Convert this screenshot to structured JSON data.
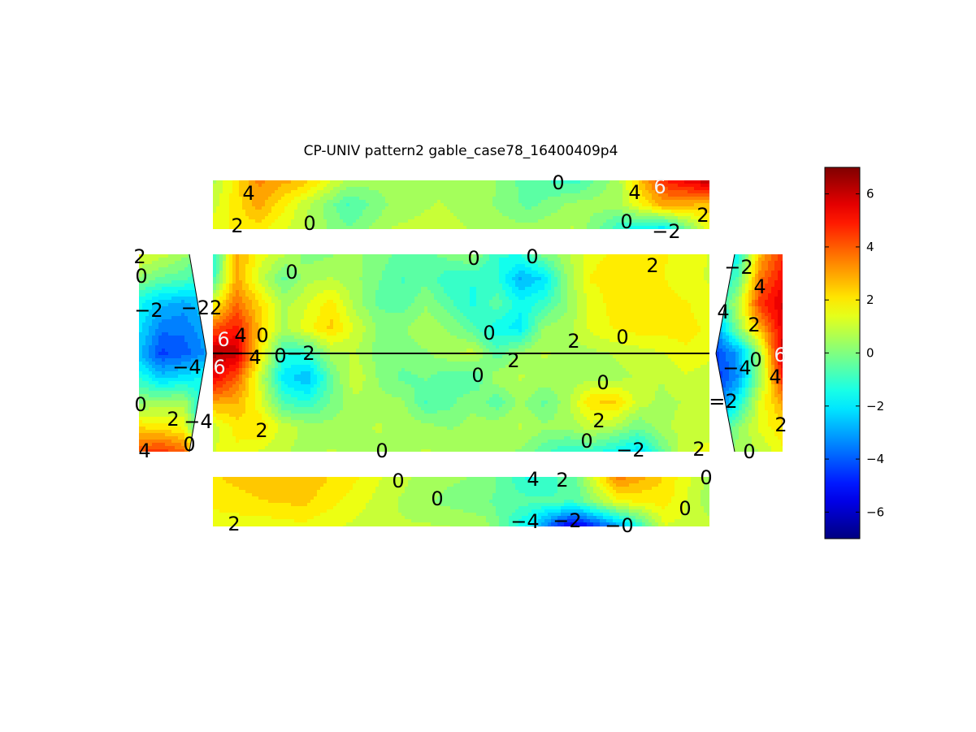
{
  "chart_data": {
    "type": "heatmap",
    "title": "CP-UNIV pattern2 gable_case78_16400409p4",
    "colormap": "jet",
    "value_range": [
      -7,
      7
    ],
    "colorbar": {
      "ticks": [
        -6,
        -4,
        -2,
        0,
        2,
        4,
        6
      ],
      "tick_labels": [
        "−6",
        "−4",
        "−2",
        "0",
        "2",
        "4",
        "6"
      ]
    },
    "grid_on": false,
    "faces": [
      {
        "name": "top-wall",
        "nx": 12,
        "ny": 3,
        "values": [
          [
            0.6,
            3.4,
            2.6,
            0.6,
            0.4,
            0.6,
            0.6,
            -0.6,
            -1.0,
            0.6,
            4.8,
            6.2
          ],
          [
            1.0,
            3.0,
            1.0,
            -0.8,
            0.4,
            0.8,
            0.4,
            -0.4,
            0.4,
            0.6,
            3.0,
            2.6
          ],
          [
            1.6,
            2.0,
            0.8,
            -0.2,
            0.8,
            1.0,
            0.6,
            0.4,
            0.8,
            -1.2,
            -2.2,
            1.6
          ]
        ]
      },
      {
        "name": "roof",
        "nx": 22,
        "ny": 9,
        "values": [
          [
            -1.5,
            3.0,
            1.5,
            0.8,
            0.0,
            0.2,
            0.4,
            0.0,
            -0.4,
            -0.4,
            0.0,
            0.4,
            -1.2,
            -1.2,
            0.0,
            0.6,
            1.6,
            1.8,
            1.8,
            1.8,
            1.6,
            1.2
          ],
          [
            -1.0,
            3.0,
            1.0,
            -0.4,
            0.6,
            0.8,
            0.4,
            -0.2,
            -0.8,
            -0.4,
            -1.2,
            -1.2,
            -1.2,
            -2.8,
            -2.2,
            0.4,
            1.8,
            2.0,
            2.0,
            1.8,
            1.4,
            1.2
          ],
          [
            1.5,
            3.8,
            2.2,
            0.6,
            1.2,
            2.0,
            0.6,
            -0.4,
            -0.6,
            0.2,
            -0.6,
            -1.4,
            -0.4,
            -1.6,
            -1.0,
            0.2,
            1.4,
            2.0,
            2.0,
            2.0,
            1.8,
            1.4
          ],
          [
            4.0,
            5.0,
            2.5,
            0.6,
            1.6,
            2.4,
            1.2,
            0.2,
            0.2,
            0.6,
            0.2,
            -0.6,
            -1.6,
            -2.0,
            0.4,
            0.6,
            1.4,
            1.8,
            2.0,
            2.0,
            2.0,
            1.6
          ],
          [
            6.5,
            6.0,
            2.0,
            -1.2,
            -1.0,
            0.6,
            0.8,
            0.0,
            0.0,
            0.2,
            0.6,
            1.0,
            -0.6,
            0.4,
            0.8,
            0.6,
            0.6,
            0.8,
            1.0,
            1.2,
            1.6,
            1.4
          ],
          [
            5.5,
            4.0,
            1.0,
            -2.0,
            -2.8,
            -0.4,
            1.2,
            0.2,
            -0.4,
            -0.2,
            -0.6,
            -0.8,
            0.6,
            0.8,
            0.6,
            0.4,
            0.6,
            0.6,
            0.8,
            0.8,
            1.2,
            1.0
          ],
          [
            3.0,
            2.8,
            1.4,
            -0.8,
            -1.2,
            -0.2,
            0.6,
            0.4,
            0.4,
            -0.8,
            -0.4,
            0.2,
            -0.6,
            0.4,
            -0.4,
            0.6,
            2.2,
            2.4,
            1.0,
            0.6,
            0.8,
            0.8
          ],
          [
            1.0,
            2.0,
            2.2,
            1.0,
            0.6,
            0.4,
            0.6,
            0.8,
            0.6,
            0.4,
            0.2,
            0.4,
            0.6,
            0.8,
            0.4,
            0.4,
            1.0,
            0.6,
            -0.2,
            0.6,
            1.0,
            1.0
          ],
          [
            1.2,
            1.6,
            1.2,
            0.8,
            0.6,
            0.8,
            0.6,
            0.6,
            0.6,
            0.8,
            0.6,
            0.4,
            0.4,
            0.2,
            -0.6,
            -1.2,
            -1.0,
            -1.6,
            -2.2,
            -0.4,
            1.2,
            1.4
          ]
        ]
      },
      {
        "name": "bottom-wall",
        "nx": 12,
        "ny": 3,
        "values": [
          [
            2.2,
            2.6,
            2.6,
            2.0,
            1.0,
            0.4,
            0.2,
            -1.4,
            -0.4,
            3.6,
            2.2,
            0.6
          ],
          [
            1.8,
            2.2,
            2.4,
            1.6,
            0.8,
            0.2,
            -0.2,
            -0.6,
            -0.8,
            1.6,
            2.0,
            0.4
          ],
          [
            1.6,
            1.4,
            1.6,
            1.2,
            0.8,
            0.8,
            0.6,
            -2.0,
            -6.0,
            -3.0,
            1.2,
            1.0
          ]
        ]
      },
      {
        "name": "left-gable",
        "nx": 4,
        "ny": 9,
        "values": [
          [
            1.4,
            1.0,
            0.4,
            -0.4
          ],
          [
            0.2,
            -0.4,
            -0.6,
            -1.6
          ],
          [
            -1.6,
            -2.6,
            -3.0,
            -2.2
          ],
          [
            -2.0,
            -3.6,
            -3.6,
            -2.8
          ],
          [
            -2.6,
            -4.4,
            -4.0,
            -3.2
          ],
          [
            -1.2,
            -2.4,
            -2.0,
            -1.6
          ],
          [
            0.2,
            0.4,
            0.6,
            -2.2
          ],
          [
            2.2,
            2.0,
            1.6,
            -2.6
          ],
          [
            4.2,
            4.6,
            3.8,
            0.4
          ]
        ]
      },
      {
        "name": "right-gable",
        "nx": 4,
        "ny": 9,
        "values": [
          [
            -2.4,
            -1.6,
            2.8,
            4.6
          ],
          [
            -2.0,
            -0.6,
            3.6,
            5.2
          ],
          [
            -1.8,
            0.8,
            4.6,
            5.8
          ],
          [
            -3.2,
            0.2,
            2.8,
            5.6
          ],
          [
            -4.4,
            -3.0,
            0.6,
            6.0
          ],
          [
            -4.6,
            -3.2,
            0.4,
            4.8
          ],
          [
            -4.0,
            -1.6,
            1.4,
            3.0
          ],
          [
            -2.0,
            0.2,
            1.4,
            2.2
          ],
          [
            0.6,
            0.4,
            0.8,
            1.6
          ]
        ]
      }
    ],
    "contour_labels": [
      {
        "face": "top-wall",
        "text": "4",
        "tone": "dark"
      },
      {
        "face": "top-wall",
        "text": "2",
        "tone": "dark"
      },
      {
        "face": "top-wall",
        "text": "0",
        "tone": "dark"
      },
      {
        "face": "top-wall",
        "text": "0",
        "tone": "dark"
      },
      {
        "face": "top-wall",
        "text": "4",
        "tone": "dark"
      },
      {
        "face": "top-wall",
        "text": "6",
        "tone": "light"
      },
      {
        "face": "top-wall",
        "text": "0",
        "tone": "dark"
      },
      {
        "face": "top-wall",
        "text": "−2",
        "tone": "dark"
      },
      {
        "face": "top-wall",
        "text": "2",
        "tone": "dark"
      },
      {
        "face": "roof",
        "text": "0",
        "tone": "dark"
      },
      {
        "face": "roof",
        "text": "0",
        "tone": "dark"
      },
      {
        "face": "roof",
        "text": "0",
        "tone": "dark"
      },
      {
        "face": "roof",
        "text": "2",
        "tone": "dark"
      },
      {
        "face": "roof",
        "text": "6",
        "tone": "light"
      },
      {
        "face": "roof",
        "text": "4",
        "tone": "dark"
      },
      {
        "face": "roof",
        "text": "0",
        "tone": "dark"
      },
      {
        "face": "roof",
        "text": "0",
        "tone": "dark"
      },
      {
        "face": "roof",
        "text": "2",
        "tone": "dark"
      },
      {
        "face": "roof",
        "text": "0",
        "tone": "dark"
      },
      {
        "face": "roof",
        "text": "6",
        "tone": "light"
      },
      {
        "face": "roof",
        "text": "4",
        "tone": "dark"
      },
      {
        "face": "roof",
        "text": "0",
        "tone": "dark"
      },
      {
        "face": "roof",
        "text": "−2",
        "tone": "dark"
      },
      {
        "face": "roof",
        "text": "2",
        "tone": "dark"
      },
      {
        "face": "roof",
        "text": "0",
        "tone": "dark"
      },
      {
        "face": "roof",
        "text": "0",
        "tone": "dark"
      },
      {
        "face": "roof",
        "text": "2",
        "tone": "dark"
      },
      {
        "face": "roof",
        "text": "2",
        "tone": "dark"
      },
      {
        "face": "roof",
        "text": "0",
        "tone": "dark"
      },
      {
        "face": "roof",
        "text": "−2",
        "tone": "dark"
      },
      {
        "face": "roof",
        "text": "0",
        "tone": "dark"
      },
      {
        "face": "roof",
        "text": "2",
        "tone": "dark"
      },
      {
        "face": "bottom-wall",
        "text": "0",
        "tone": "dark"
      },
      {
        "face": "bottom-wall",
        "text": "0",
        "tone": "dark"
      },
      {
        "face": "bottom-wall",
        "text": "4",
        "tone": "dark"
      },
      {
        "face": "bottom-wall",
        "text": "2",
        "tone": "dark"
      },
      {
        "face": "bottom-wall",
        "text": "0",
        "tone": "dark"
      },
      {
        "face": "bottom-wall",
        "text": "0",
        "tone": "dark"
      },
      {
        "face": "bottom-wall",
        "text": "2",
        "tone": "dark"
      },
      {
        "face": "bottom-wall",
        "text": "−4",
        "tone": "dark"
      },
      {
        "face": "bottom-wall",
        "text": "−2",
        "tone": "dark"
      },
      {
        "face": "bottom-wall",
        "text": "−0",
        "tone": "dark"
      },
      {
        "face": "left-gable",
        "text": "2",
        "tone": "dark"
      },
      {
        "face": "left-gable",
        "text": "0",
        "tone": "dark"
      },
      {
        "face": "left-gable",
        "text": "−2",
        "tone": "dark"
      },
      {
        "face": "left-gable",
        "text": "−22",
        "tone": "dark"
      },
      {
        "face": "left-gable",
        "text": "−4",
        "tone": "dark"
      },
      {
        "face": "left-gable",
        "text": "0",
        "tone": "dark"
      },
      {
        "face": "left-gable",
        "text": "2",
        "tone": "dark"
      },
      {
        "face": "left-gable",
        "text": "−4",
        "tone": "dark"
      },
      {
        "face": "left-gable",
        "text": "4",
        "tone": "dark"
      },
      {
        "face": "left-gable",
        "text": "0",
        "tone": "dark"
      },
      {
        "face": "right-gable",
        "text": "−2",
        "tone": "dark"
      },
      {
        "face": "right-gable",
        "text": "4",
        "tone": "dark"
      },
      {
        "face": "right-gable",
        "text": "4",
        "tone": "dark"
      },
      {
        "face": "right-gable",
        "text": "2",
        "tone": "dark"
      },
      {
        "face": "right-gable",
        "text": "0",
        "tone": "dark"
      },
      {
        "face": "right-gable",
        "text": "6",
        "tone": "light"
      },
      {
        "face": "right-gable",
        "text": "−4",
        "tone": "dark"
      },
      {
        "face": "right-gable",
        "text": "4",
        "tone": "dark"
      },
      {
        "face": "right-gable",
        "text": "=2",
        "tone": "dark"
      },
      {
        "face": "right-gable",
        "text": "2",
        "tone": "dark"
      },
      {
        "face": "right-gable",
        "text": "0",
        "tone": "dark"
      }
    ]
  }
}
